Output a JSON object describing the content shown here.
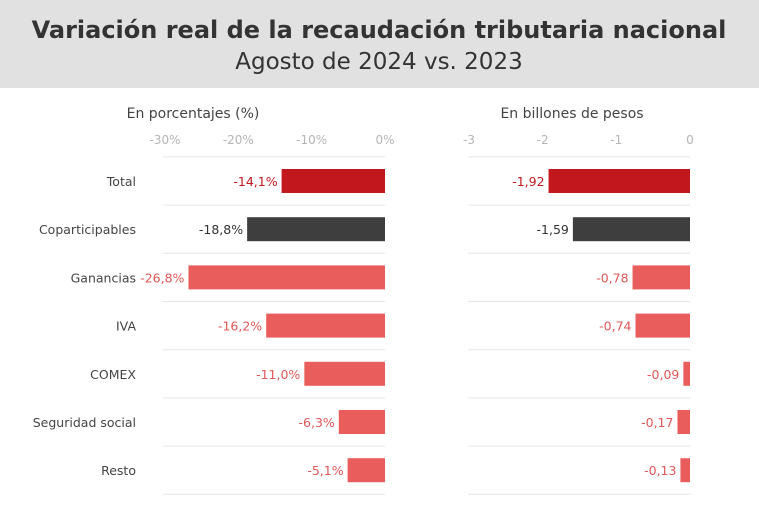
{
  "header": {
    "title": "Variación real de la recaudación tributaria nacional",
    "subtitle": "Agosto de 2024 vs. 2023"
  },
  "colors": {
    "header_bg": "#e1e1e1",
    "total": "#c1171d",
    "coparticipables": "#3e3e3e",
    "other": "#e95d5d",
    "total_label": "#c1171d",
    "coparticipables_label": "#333333",
    "other_label": "#e05858",
    "tick": "#b5b5b5",
    "grid": "#e6e6e6"
  },
  "chart_data": [
    {
      "type": "bar",
      "orientation": "horizontal",
      "title": "En porcentajes (%)",
      "categories": [
        "Total",
        "Coparticipables",
        "Ganancias",
        "IVA",
        "COMEX",
        "Seguridad social",
        "Resto"
      ],
      "values": [
        -14.1,
        -18.8,
        -26.8,
        -16.2,
        -11.0,
        -6.3,
        -5.1
      ],
      "value_labels": [
        "-14,1%",
        "-18,8%",
        "-26,8%",
        "-16,2%",
        "-11,0%",
        "-6,3%",
        "-5,1%"
      ],
      "xlim": [
        -30,
        0
      ],
      "ticks": [
        -30,
        -20,
        -10,
        0
      ],
      "tick_labels": [
        "-30%",
        "-20%",
        "-10%",
        "0%"
      ]
    },
    {
      "type": "bar",
      "orientation": "horizontal",
      "title": "En billones de pesos",
      "categories": [
        "Total",
        "Coparticipables",
        "Ganancias",
        "IVA",
        "COMEX",
        "Seguridad social",
        "Resto"
      ],
      "values": [
        -1.92,
        -1.59,
        -0.78,
        -0.74,
        -0.09,
        -0.17,
        -0.13
      ],
      "value_labels": [
        "-1,92",
        "-1,59",
        "-0,78",
        "-0,74",
        "-0,09",
        "-0,17",
        "-0,13"
      ],
      "xlim": [
        -3,
        0
      ],
      "ticks": [
        -3,
        -2,
        -1,
        0
      ],
      "tick_labels": [
        "-3",
        "-2",
        "-1",
        "0"
      ]
    }
  ]
}
